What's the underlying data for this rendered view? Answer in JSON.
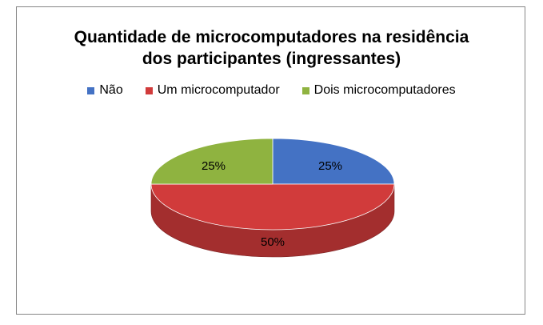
{
  "chart_data": {
    "type": "pie",
    "title_line1": "Quantidade de microcomputadores na residência",
    "title_line2": "dos participantes (ingressantes)",
    "slices": [
      {
        "label": "Não",
        "value": 25,
        "display": "25%",
        "color": "#4472c4"
      },
      {
        "label": "Um microcomputador",
        "value": 50,
        "display": "50%",
        "color": "#d13b3b"
      },
      {
        "label": "Dois microcomputadores",
        "value": 25,
        "display": "25%",
        "color": "#8fb340"
      }
    ],
    "legend_position": "top",
    "style": "3d"
  }
}
